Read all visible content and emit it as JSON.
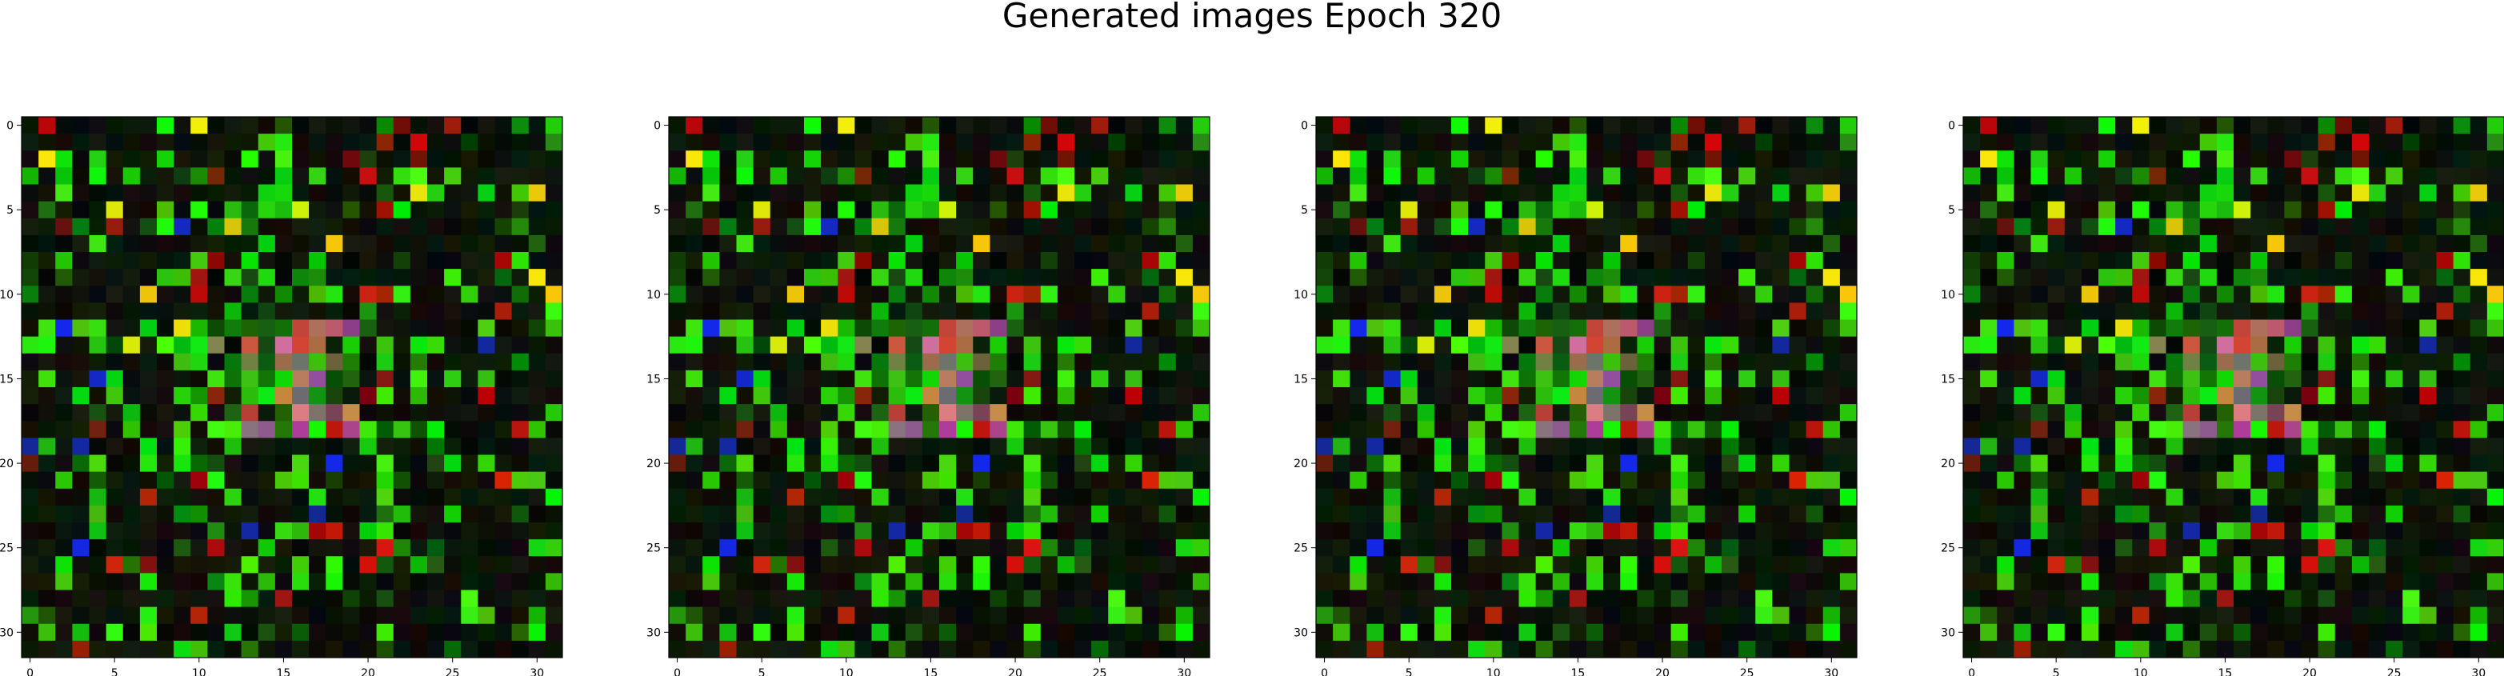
{
  "figure": {
    "title": "Generated images Epoch 320"
  },
  "chart_data": [
    {
      "type": "heatmap",
      "title": "",
      "xlabel": "",
      "ylabel": "",
      "xlim": [
        -0.5,
        31.5
      ],
      "ylim": [
        31.5,
        -0.5
      ],
      "xticks": [
        0,
        5,
        10,
        15,
        20,
        25,
        30
      ],
      "yticks": [
        0,
        5,
        10,
        15,
        20,
        25,
        30
      ]
    },
    {
      "type": "heatmap",
      "title": "",
      "xlabel": "",
      "ylabel": "",
      "xlim": [
        -0.5,
        31.5
      ],
      "ylim": [
        31.5,
        -0.5
      ],
      "xticks": [
        0,
        5,
        10,
        15,
        20,
        25,
        30
      ],
      "yticks": [
        0,
        5,
        10,
        15,
        20,
        25,
        30
      ]
    },
    {
      "type": "heatmap",
      "title": "",
      "xlabel": "",
      "ylabel": "",
      "xlim": [
        -0.5,
        31.5
      ],
      "ylim": [
        31.5,
        -0.5
      ],
      "xticks": [
        0,
        5,
        10,
        15,
        20,
        25,
        30
      ],
      "yticks": [
        0,
        5,
        10,
        15,
        20,
        25,
        30
      ]
    },
    {
      "type": "heatmap",
      "title": "",
      "xlabel": "",
      "ylabel": "",
      "xlim": [
        -0.5,
        31.5
      ],
      "ylim": [
        31.5,
        -0.5
      ],
      "xticks": [
        0,
        5,
        10,
        15,
        20,
        25,
        30
      ],
      "yticks": [
        0,
        5,
        10,
        15,
        20,
        25,
        30
      ]
    }
  ]
}
